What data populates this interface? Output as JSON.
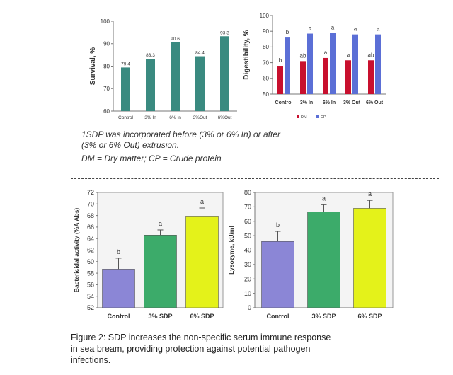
{
  "notes": {
    "line1": "1SDP was incorporated before (3% or 6% In) or after",
    "line2": "(3% or 6% Out) extrusion.",
    "line3": "DM = Dry matter; CP = Crude protein"
  },
  "caption": {
    "line1": "Figure 2: SDP increases the non-specific serum immune response",
    "line2": "in sea bream, providing protection against potential pathogen",
    "line3": "infections."
  },
  "chart_data": [
    {
      "id": "survival",
      "type": "bar",
      "categories": [
        "Control",
        "3% In",
        "6% In",
        "3%Out",
        "6%Out"
      ],
      "values": [
        79.4,
        83.3,
        90.6,
        84.4,
        93.3
      ],
      "value_labels": [
        "79.4",
        "83.3",
        "90.6",
        "84.4",
        "93.3"
      ],
      "ylabel": "Survival, %",
      "ylim": [
        60,
        100
      ],
      "yticks": [
        60,
        70,
        80,
        90,
        100
      ],
      "color": "#3a8a80"
    },
    {
      "id": "digestibility",
      "type": "bar",
      "categories": [
        "Control",
        "3% In",
        "6% In",
        "3% Out",
        "6% Out"
      ],
      "series": [
        {
          "name": "DM",
          "values": [
            68,
            71,
            73,
            71.5,
            71.5
          ],
          "letters": [
            "b",
            "ab",
            "a",
            "a",
            "ab"
          ],
          "color": "#c8102e"
        },
        {
          "name": "CP",
          "values": [
            86,
            88.5,
            89,
            88,
            88
          ],
          "letters": [
            "b",
            "a",
            "a",
            "a",
            "a"
          ],
          "color": "#5b6fd6"
        }
      ],
      "ylabel": "Digestibility, %",
      "ylim": [
        50,
        100
      ],
      "yticks": [
        50,
        60,
        70,
        80,
        90,
        100
      ],
      "legend": "bottom"
    },
    {
      "id": "bactericidal",
      "type": "bar",
      "categories": [
        "Control",
        "3% SDP",
        "6% SDP"
      ],
      "values": [
        58.7,
        64.6,
        67.9
      ],
      "errors": [
        1.9,
        0.9,
        1.4
      ],
      "letters": [
        "b",
        "a",
        "a"
      ],
      "colors": [
        "#8b86d6",
        "#3cab6a",
        "#e4f21a"
      ],
      "ylabel": "Bactericidal activity (%A Abs)",
      "ylim": [
        52,
        72
      ],
      "yticks": [
        52,
        54,
        56,
        58,
        60,
        62,
        64,
        66,
        68,
        70,
        72
      ]
    },
    {
      "id": "lysozyme",
      "type": "bar",
      "categories": [
        "Control",
        "3% SDP",
        "6% SDP"
      ],
      "values": [
        46,
        66.5,
        69
      ],
      "errors": [
        7,
        5,
        5.5
      ],
      "letters": [
        "b",
        "a",
        "a"
      ],
      "colors": [
        "#8b86d6",
        "#3cab6a",
        "#e4f21a"
      ],
      "ylabel": "Lysozyme, kU/ml",
      "ylim": [
        0,
        80
      ],
      "yticks": [
        0,
        10,
        20,
        30,
        40,
        50,
        60,
        70,
        80
      ]
    }
  ]
}
